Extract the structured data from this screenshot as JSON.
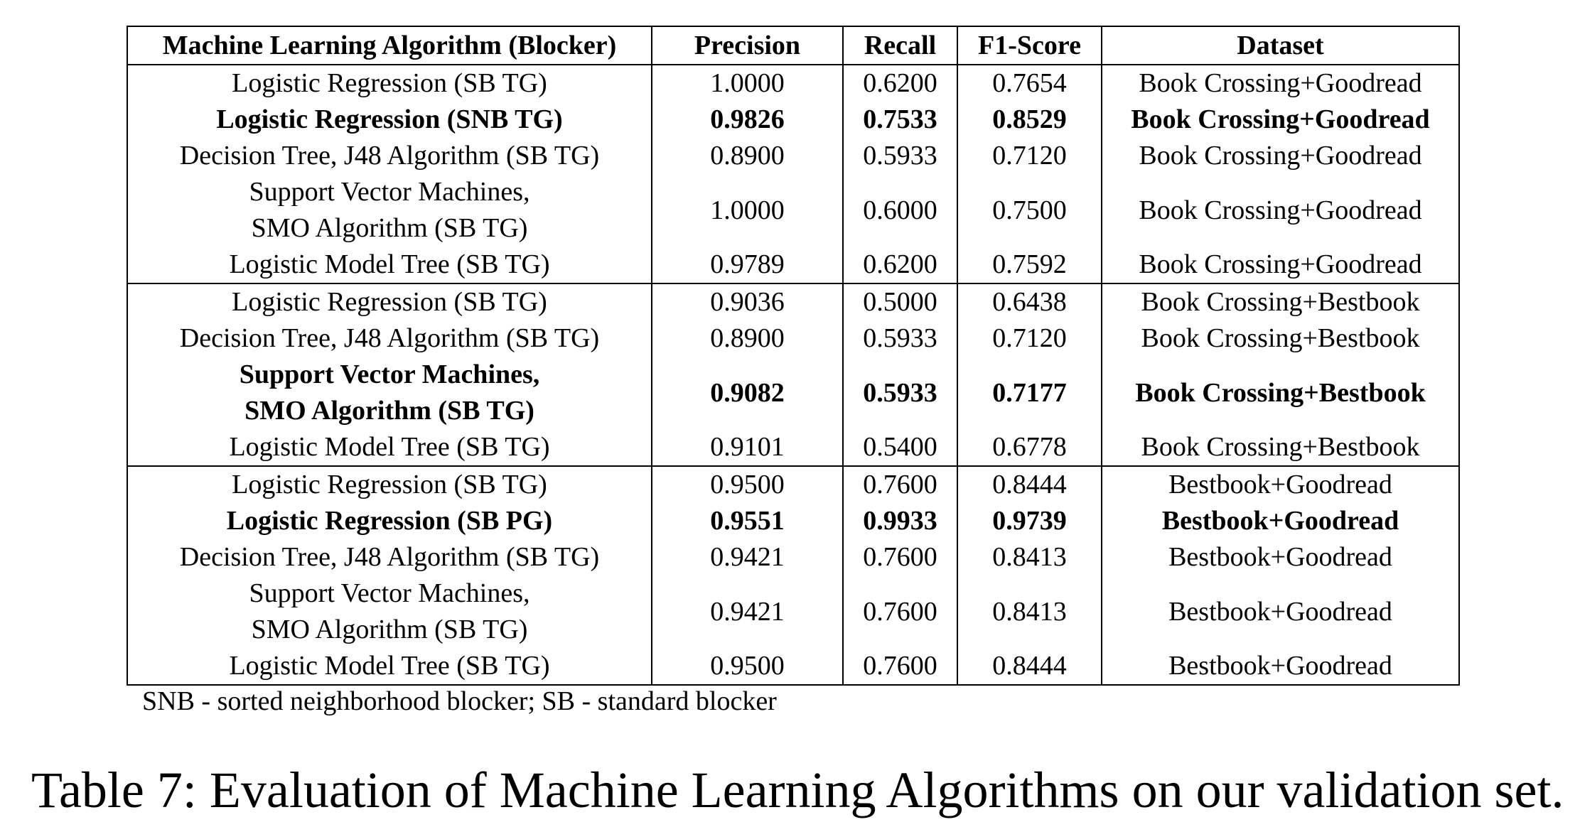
{
  "table": {
    "headers": [
      "Machine Learning Algorithm (Blocker)",
      "Precision",
      "Recall",
      "F1-Score",
      "Dataset"
    ],
    "groups": [
      {
        "rows": [
          {
            "algorithm": [
              "Logistic Regression (SB TG)"
            ],
            "precision": "1.0000",
            "recall": "0.6200",
            "f1": "0.7654",
            "dataset": "Book Crossing+Goodread",
            "bold": false
          },
          {
            "algorithm": [
              "Logistic Regression (SNB TG)"
            ],
            "precision": "0.9826",
            "recall": "0.7533",
            "f1": "0.8529",
            "dataset": "Book Crossing+Goodread",
            "bold": true
          },
          {
            "algorithm": [
              "Decision Tree, J48 Algorithm (SB TG)"
            ],
            "precision": "0.8900",
            "recall": "0.5933",
            "f1": "0.7120",
            "dataset": "Book Crossing+Goodread",
            "bold": false
          },
          {
            "algorithm": [
              "Support Vector Machines,",
              "SMO Algorithm (SB TG)"
            ],
            "precision": "1.0000",
            "recall": "0.6000",
            "f1": "0.7500",
            "dataset": "Book Crossing+Goodread",
            "bold": false
          },
          {
            "algorithm": [
              "Logistic Model Tree (SB TG)"
            ],
            "precision": "0.9789",
            "recall": "0.6200",
            "f1": "0.7592",
            "dataset": "Book Crossing+Goodread",
            "bold": false
          }
        ]
      },
      {
        "rows": [
          {
            "algorithm": [
              "Logistic Regression (SB TG)"
            ],
            "precision": "0.9036",
            "recall": "0.5000",
            "f1": "0.6438",
            "dataset": "Book Crossing+Bestbook",
            "bold": false
          },
          {
            "algorithm": [
              "Decision Tree, J48 Algorithm (SB TG)"
            ],
            "precision": "0.8900",
            "recall": "0.5933",
            "f1": "0.7120",
            "dataset": "Book Crossing+Bestbook",
            "bold": false
          },
          {
            "algorithm": [
              "Support Vector Machines,",
              "SMO Algorithm (SB TG)"
            ],
            "precision": "0.9082",
            "recall": "0.5933",
            "f1": "0.7177",
            "dataset": "Book Crossing+Bestbook",
            "bold": true
          },
          {
            "algorithm": [
              "Logistic Model Tree (SB TG)"
            ],
            "precision": "0.9101",
            "recall": "0.5400",
            "f1": "0.6778",
            "dataset": "Book Crossing+Bestbook",
            "bold": false
          }
        ]
      },
      {
        "rows": [
          {
            "algorithm": [
              "Logistic Regression (SB TG)"
            ],
            "precision": "0.9500",
            "recall": "0.7600",
            "f1": "0.8444",
            "dataset": "Bestbook+Goodread",
            "bold": false
          },
          {
            "algorithm": [
              "Logistic Regression (SB PG)"
            ],
            "precision": "0.9551",
            "recall": "0.9933",
            "f1": "0.9739",
            "dataset": "Bestbook+Goodread",
            "bold": true
          },
          {
            "algorithm": [
              "Decision Tree, J48 Algorithm (SB TG)"
            ],
            "precision": "0.9421",
            "recall": "0.7600",
            "f1": "0.8413",
            "dataset": "Bestbook+Goodread",
            "bold": false
          },
          {
            "algorithm": [
              "Support Vector Machines,",
              "SMO Algorithm (SB TG)"
            ],
            "precision": "0.9421",
            "recall": "0.7600",
            "f1": "0.8413",
            "dataset": "Bestbook+Goodread",
            "bold": false
          },
          {
            "algorithm": [
              "Logistic Model Tree (SB TG)"
            ],
            "precision": "0.9500",
            "recall": "0.7600",
            "f1": "0.8444",
            "dataset": "Bestbook+Goodread",
            "bold": false
          }
        ]
      }
    ]
  },
  "footnote": "SNB - sorted neighborhood blocker; SB - standard blocker",
  "caption": "Table 7: Evaluation of Machine Learning Algorithms on our validation set."
}
